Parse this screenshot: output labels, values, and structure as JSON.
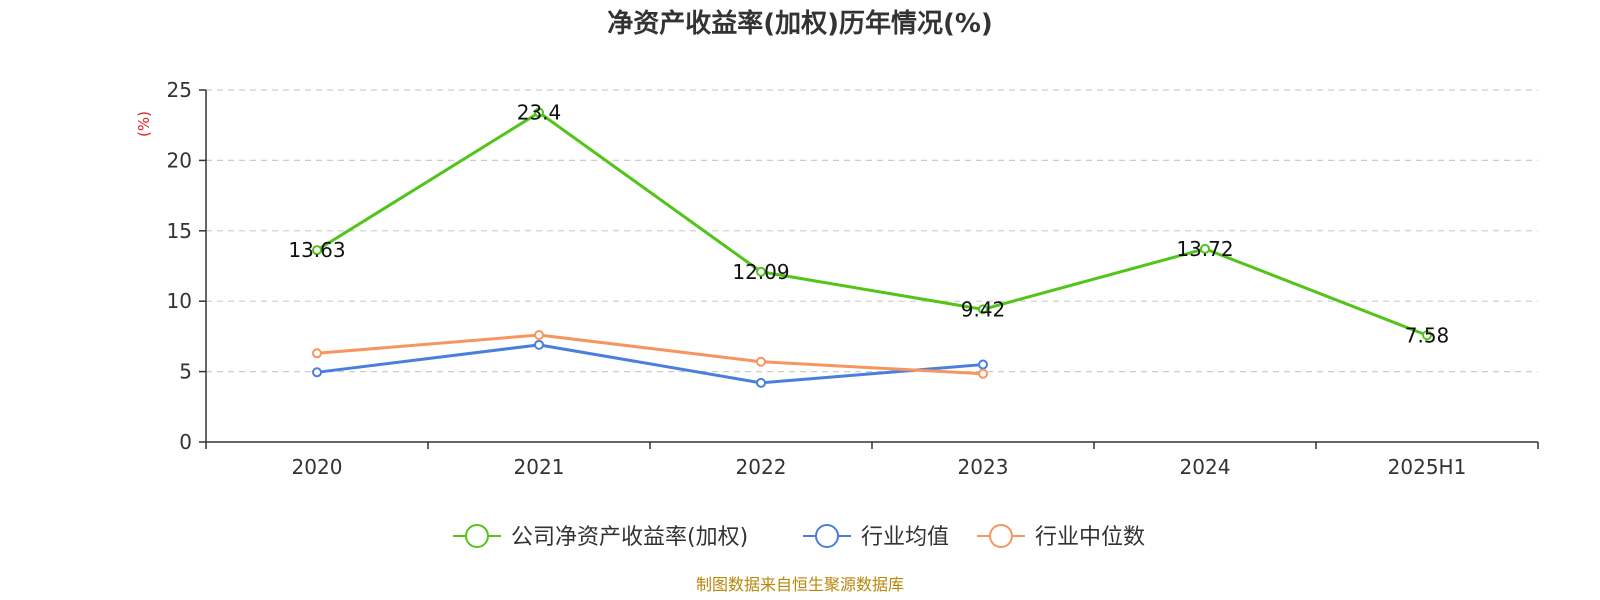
{
  "chart_data": {
    "type": "line",
    "title": "净资产收益率(加权)历年情况(%)",
    "ylabel": "(%)",
    "xlabel": "",
    "categories": [
      "2020",
      "2021",
      "2022",
      "2023",
      "2024",
      "2025H1"
    ],
    "ylim": [
      0,
      25
    ],
    "yticks": [
      0,
      5,
      10,
      15,
      20,
      25
    ],
    "grid": true,
    "legend_position": "bottom",
    "series": [
      {
        "name": "公司净资产收益率(加权)",
        "color": "#52c41a",
        "values": [
          13.63,
          23.4,
          12.09,
          9.42,
          13.72,
          7.58
        ],
        "data_labels": [
          "13.63",
          "23.4",
          "12.09",
          "9.42",
          "13.72",
          "7.58"
        ]
      },
      {
        "name": "行业均值",
        "color": "#4a7fdc",
        "values": [
          4.95,
          6.9,
          4.2,
          5.5,
          null,
          null
        ]
      },
      {
        "name": "行业中位数",
        "color": "#f79560",
        "values": [
          6.3,
          7.6,
          5.7,
          4.85,
          null,
          null
        ]
      }
    ]
  },
  "footer": {
    "source": "制图数据来自恒生聚源数据库",
    "source_color": "#b8860b"
  },
  "colors": {
    "ylabel": "#e02020",
    "axis": "#333333",
    "grid": "#cccccc"
  }
}
